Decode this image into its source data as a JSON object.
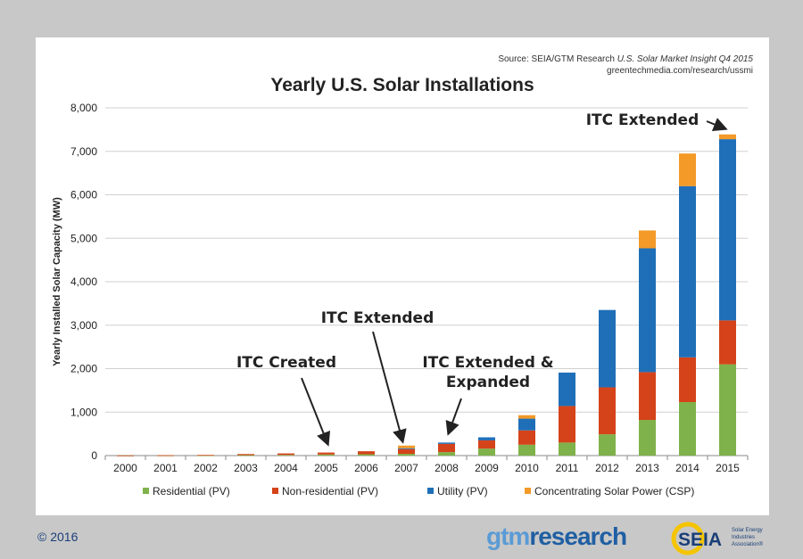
{
  "source": {
    "line1_prefix": "Source: SEIA/GTM Research ",
    "line1_italic": "U.S. Solar Market Insight Q4 2015",
    "line2": "greentechmedia.com/research/ussmi"
  },
  "footer": {
    "copyright": "© 2016",
    "gtm_logo_a": "gtm",
    "gtm_logo_b": "research",
    "seia_logo": "SEIA",
    "seia_tagline": [
      "Solar Energy",
      "Industries",
      "Association®"
    ]
  },
  "colors": {
    "residential": "#7fb24a",
    "nonresidential": "#d5431a",
    "utility": "#1f6fb8",
    "csp": "#f39a28"
  },
  "chart_data": {
    "type": "bar",
    "stacked": true,
    "title": "Yearly U.S. Solar Installations",
    "xlabel": "",
    "ylabel": "Yearly Installed Solar Capacity (MW)",
    "ylim": [
      0,
      8000
    ],
    "yticks": [
      "0",
      "1,000",
      "2,000",
      "3,000",
      "4,000",
      "5,000",
      "6,000",
      "7,000",
      "8,000"
    ],
    "ytick_values": [
      0,
      1000,
      2000,
      3000,
      4000,
      5000,
      6000,
      7000,
      8000
    ],
    "grid": true,
    "legend_position": "bottom",
    "categories": [
      "2000",
      "2001",
      "2002",
      "2003",
      "2004",
      "2005",
      "2006",
      "2007",
      "2008",
      "2009",
      "2010",
      "2011",
      "2012",
      "2013",
      "2014",
      "2015"
    ],
    "series": [
      {
        "name": "Residential (PV)",
        "color_key": "residential",
        "values": [
          2,
          3,
          5,
          10,
          15,
          25,
          30,
          40,
          80,
          160,
          250,
          300,
          490,
          820,
          1230,
          2100
        ]
      },
      {
        "name": "Non-residential (PV)",
        "color_key": "nonresidential",
        "values": [
          2,
          5,
          10,
          25,
          35,
          45,
          70,
          110,
          190,
          190,
          330,
          840,
          1080,
          1100,
          1030,
          1010
        ]
      },
      {
        "name": "Utility (PV)",
        "color_key": "utility",
        "values": [
          0,
          0,
          0,
          0,
          0,
          0,
          0,
          20,
          30,
          70,
          270,
          770,
          1780,
          2850,
          3940,
          4170
        ]
      },
      {
        "name": "Concentrating Solar Power (CSP)",
        "color_key": "csp",
        "values": [
          0,
          0,
          0,
          0,
          0,
          0,
          0,
          60,
          0,
          0,
          80,
          0,
          0,
          410,
          750,
          110
        ]
      }
    ],
    "annotations": [
      {
        "text": "ITC Created",
        "target_category": "2005"
      },
      {
        "text": "ITC Extended",
        "target_category": "2007"
      },
      {
        "text": "ITC Extended &\nExpanded",
        "target_category": "2008"
      },
      {
        "text": "ITC Extended",
        "target_category": "2015"
      }
    ]
  }
}
